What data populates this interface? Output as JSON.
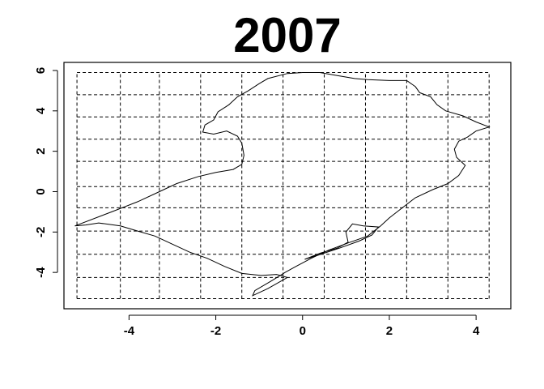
{
  "chart_data": {
    "type": "map",
    "title": "2007",
    "xlabel": "",
    "ylabel": "",
    "xlim": [
      -5.5,
      4.8
    ],
    "ylim": [
      -5.8,
      6.4
    ],
    "x_ticks": [
      -4,
      -2,
      0,
      2,
      4
    ],
    "y_ticks": [
      -4,
      -2,
      0,
      2,
      4,
      6
    ],
    "x_tick_labels": [
      "-4",
      "-2",
      "0",
      "2",
      "4"
    ],
    "y_tick_labels": [
      "-4",
      "-2",
      "0",
      "2",
      "4",
      "6"
    ],
    "grid": true,
    "grid_style": "dashed",
    "graticule_x": [
      -5.2,
      -4.2,
      -3.3,
      -2.35,
      -1.4,
      -0.45,
      0.5,
      1.45,
      2.4,
      3.35,
      4.3
    ],
    "graticule_y": [
      -5.3,
      -4.25,
      -3.1,
      -1.95,
      -0.8,
      0.25,
      1.5,
      2.6,
      3.7,
      4.8,
      5.9
    ],
    "outline": [
      [
        -5.25,
        -1.7
      ],
      [
        -4.4,
        -1.0
      ],
      [
        -3.8,
        -0.5
      ],
      [
        -3.3,
        0.0
      ],
      [
        -2.9,
        0.4
      ],
      [
        -2.4,
        0.75
      ],
      [
        -2.0,
        0.95
      ],
      [
        -1.6,
        1.1
      ],
      [
        -1.4,
        1.35
      ],
      [
        -1.35,
        1.8
      ],
      [
        -1.4,
        2.4
      ],
      [
        -1.5,
        2.75
      ],
      [
        -1.75,
        3.0
      ],
      [
        -2.05,
        2.85
      ],
      [
        -2.3,
        2.95
      ],
      [
        -2.25,
        3.3
      ],
      [
        -2.05,
        3.55
      ],
      [
        -1.95,
        3.95
      ],
      [
        -1.7,
        4.3
      ],
      [
        -1.5,
        4.7
      ],
      [
        -1.25,
        5.0
      ],
      [
        -1.0,
        5.35
      ],
      [
        -0.8,
        5.6
      ],
      [
        -0.35,
        5.85
      ],
      [
        0.0,
        5.9
      ],
      [
        0.4,
        5.9
      ],
      [
        0.8,
        5.75
      ],
      [
        1.2,
        5.6
      ],
      [
        1.5,
        5.55
      ],
      [
        2.0,
        5.5
      ],
      [
        2.4,
        5.5
      ],
      [
        2.6,
        5.2
      ],
      [
        2.7,
        4.9
      ],
      [
        2.95,
        4.7
      ],
      [
        3.1,
        4.3
      ],
      [
        3.3,
        4.0
      ],
      [
        3.7,
        3.75
      ],
      [
        4.0,
        3.45
      ],
      [
        4.3,
        3.2
      ],
      [
        4.0,
        3.0
      ],
      [
        3.8,
        2.7
      ],
      [
        3.6,
        2.5
      ],
      [
        3.5,
        2.1
      ],
      [
        3.55,
        1.7
      ],
      [
        3.75,
        1.3
      ],
      [
        3.6,
        0.8
      ],
      [
        3.35,
        0.4
      ],
      [
        3.0,
        0.1
      ],
      [
        2.6,
        -0.3
      ],
      [
        2.3,
        -0.8
      ],
      [
        2.0,
        -1.3
      ],
      [
        1.8,
        -1.7
      ],
      [
        1.5,
        -2.2
      ],
      [
        1.1,
        -2.5
      ],
      [
        0.6,
        -2.9
      ],
      [
        0.2,
        -3.3
      ],
      [
        -0.15,
        -3.7
      ],
      [
        -0.4,
        -4.0
      ],
      [
        -0.7,
        -4.4
      ],
      [
        -1.1,
        -4.9
      ],
      [
        -1.15,
        -5.15
      ],
      [
        -0.8,
        -4.8
      ],
      [
        -0.35,
        -4.25
      ],
      [
        -0.6,
        -4.1
      ],
      [
        -0.95,
        -4.15
      ],
      [
        -1.4,
        -4.05
      ],
      [
        -1.8,
        -3.7
      ],
      [
        -2.2,
        -3.3
      ],
      [
        -2.6,
        -3.0
      ],
      [
        -3.0,
        -2.6
      ],
      [
        -3.4,
        -2.2
      ],
      [
        -3.8,
        -1.95
      ],
      [
        -4.2,
        -1.7
      ],
      [
        -4.7,
        -1.55
      ],
      [
        -5.0,
        -1.65
      ],
      [
        -5.25,
        -1.7
      ]
    ],
    "lagoon": [
      [
        0.05,
        -3.35
      ],
      [
        0.4,
        -3.05
      ],
      [
        0.8,
        -2.8
      ],
      [
        1.05,
        -2.5
      ],
      [
        1.0,
        -2.0
      ],
      [
        1.15,
        -1.6
      ],
      [
        1.4,
        -1.7
      ],
      [
        1.75,
        -1.75
      ],
      [
        1.6,
        -2.15
      ],
      [
        1.3,
        -2.45
      ],
      [
        0.85,
        -2.8
      ],
      [
        0.35,
        -3.15
      ],
      [
        0.05,
        -3.35
      ]
    ]
  }
}
